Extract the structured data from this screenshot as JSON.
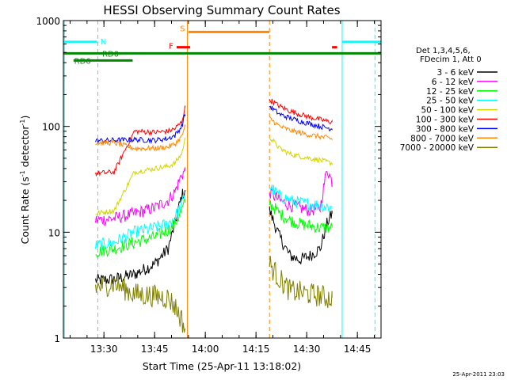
{
  "chart_data": {
    "type": "line",
    "title": "HESSI Observing Summary Count Rates",
    "xlabel": "Start Time (25-Apr-11 13:18:02)",
    "ylabel_main": "Count Rate (s",
    "ylabel_sup1": "-1",
    "ylabel_mid": " detector",
    "ylabel_sup2": "-1",
    "ylabel_end": ")",
    "x_unit": "minutes after 13:18:02",
    "xlim": [
      0,
      94
    ],
    "ylim": [
      1,
      1000
    ],
    "y_scale": "log",
    "x_ticks": [
      {
        "v": 12,
        "label": "13:30"
      },
      {
        "v": 27,
        "label": "13:45"
      },
      {
        "v": 42,
        "label": "14:00"
      },
      {
        "v": 57,
        "label": "14:15"
      },
      {
        "v": 72,
        "label": "14:30"
      },
      {
        "v": 87,
        "label": "14:45"
      }
    ],
    "y_ticks": [
      {
        "v": 1,
        "label": "1"
      },
      {
        "v": 10,
        "label": "10"
      },
      {
        "v": 100,
        "label": "100"
      },
      {
        "v": 1000,
        "label": "1000"
      }
    ],
    "legend_header": [
      "Det 1,3,4,5,6,",
      "FDecim 1, Att 0"
    ],
    "footer_date": "25-Apr-2011 23:03",
    "series": [
      {
        "name": "3 - 6 keV",
        "color": "#000000",
        "segments": [
          [
            9.5,
            3.5
          ],
          [
            15,
            3.6
          ],
          [
            21,
            4.0
          ],
          [
            27,
            5.0
          ],
          [
            31,
            7
          ],
          [
            33,
            12
          ],
          [
            35,
            22
          ],
          [
            36,
            25
          ],
          null,
          [
            61,
            16
          ],
          [
            64,
            9
          ],
          [
            67,
            6
          ],
          [
            70,
            5.5
          ],
          [
            73,
            6.0
          ],
          [
            76,
            7
          ],
          [
            78,
            12
          ],
          [
            79.5,
            15
          ],
          null
        ]
      },
      {
        "name": "6 - 12 keV",
        "color": "#ff00ff",
        "segments": [
          [
            9.5,
            13
          ],
          [
            15,
            13.5
          ],
          [
            21,
            15
          ],
          [
            27,
            17
          ],
          [
            31,
            20
          ],
          [
            33,
            24
          ],
          [
            35,
            35
          ],
          [
            36,
            38
          ],
          null,
          [
            61,
            24
          ],
          [
            64,
            20
          ],
          [
            67,
            18
          ],
          [
            70,
            17
          ],
          [
            73,
            16
          ],
          [
            76,
            17
          ],
          [
            78,
            40
          ],
          [
            79.5,
            30
          ],
          null
        ]
      },
      {
        "name": "12 - 25 keV",
        "color": "#00ff00",
        "segments": [
          [
            9.5,
            6.5
          ],
          [
            15,
            7.0
          ],
          [
            21,
            8.0
          ],
          [
            27,
            9.0
          ],
          [
            31,
            10.5
          ],
          [
            33,
            12
          ],
          [
            35,
            16
          ],
          [
            36,
            19
          ],
          null,
          [
            61,
            19
          ],
          [
            64,
            15
          ],
          [
            67,
            13
          ],
          [
            70,
            12
          ],
          [
            73,
            11.5
          ],
          [
            76,
            11
          ],
          [
            78,
            11
          ],
          [
            79.5,
            11
          ],
          null
        ]
      },
      {
        "name": "25 - 50 keV",
        "color": "#00ffff",
        "segments": [
          [
            9.5,
            7.5
          ],
          [
            15,
            8.0
          ],
          [
            21,
            10
          ],
          [
            27,
            11
          ],
          [
            31,
            12
          ],
          [
            33,
            14
          ],
          [
            35,
            18
          ],
          [
            36,
            24
          ],
          null,
          [
            61,
            27
          ],
          [
            64,
            22
          ],
          [
            67,
            20
          ],
          [
            70,
            19
          ],
          [
            73,
            18.5
          ],
          [
            76,
            18
          ],
          [
            78,
            17.5
          ],
          [
            79.5,
            17
          ],
          null
        ]
      },
      {
        "name": "50 - 100 keV",
        "color": "#d4d400",
        "segments": [
          [
            9.5,
            15
          ],
          [
            15,
            16
          ],
          [
            21,
            37
          ],
          [
            27,
            40
          ],
          [
            31,
            42
          ],
          [
            33,
            45
          ],
          [
            35,
            55
          ],
          [
            36,
            75
          ],
          null,
          [
            61,
            80
          ],
          [
            64,
            62
          ],
          [
            67,
            55
          ],
          [
            70,
            52
          ],
          [
            73,
            50
          ],
          [
            76,
            48
          ],
          [
            78,
            46
          ],
          [
            79.5,
            45
          ],
          null
        ]
      },
      {
        "name": "100 - 300 keV",
        "color": "#ff0000",
        "segments": [
          [
            9.5,
            36
          ],
          [
            15,
            37
          ],
          [
            21,
            90
          ],
          [
            27,
            88
          ],
          [
            31,
            90
          ],
          [
            33,
            95
          ],
          [
            35,
            110
          ],
          [
            36,
            150
          ],
          null,
          [
            61,
            180
          ],
          [
            64,
            155
          ],
          [
            67,
            140
          ],
          [
            70,
            130
          ],
          [
            73,
            122
          ],
          [
            76,
            116
          ],
          [
            78,
            112
          ],
          [
            79.5,
            110
          ],
          null
        ]
      },
      {
        "name": "300 - 800 keV",
        "color": "#0000ff",
        "segments": [
          [
            9.5,
            73
          ],
          [
            15,
            74
          ],
          [
            21,
            75
          ],
          [
            27,
            74
          ],
          [
            31,
            77
          ],
          [
            33,
            82
          ],
          [
            35,
            100
          ],
          [
            36,
            130
          ],
          null,
          [
            61,
            155
          ],
          [
            64,
            130
          ],
          [
            67,
            120
          ],
          [
            70,
            112
          ],
          [
            73,
            106
          ],
          [
            76,
            100
          ],
          [
            78,
            97
          ],
          [
            79.5,
            95
          ],
          null
        ]
      },
      {
        "name": "800 - 7000 keV",
        "color": "#ff8800",
        "segments": [
          [
            9.5,
            70
          ],
          [
            15,
            70
          ],
          [
            21,
            62
          ],
          [
            27,
            62
          ],
          [
            31,
            64
          ],
          [
            33,
            68
          ],
          [
            35,
            80
          ],
          [
            36,
            100
          ],
          null,
          [
            61,
            120
          ],
          [
            64,
            100
          ],
          [
            67,
            92
          ],
          [
            70,
            87
          ],
          [
            73,
            83
          ],
          [
            76,
            80
          ],
          [
            78,
            78
          ],
          [
            79.5,
            76
          ],
          null
        ]
      },
      {
        "name": "7000 - 20000 keV",
        "color": "#808000",
        "segments": [
          [
            9.5,
            3.0
          ],
          [
            15,
            3.3
          ],
          [
            21,
            2.6
          ],
          [
            27,
            2.5
          ],
          [
            31,
            2.4
          ],
          [
            33,
            2.0
          ],
          [
            35,
            1.5
          ],
          [
            36,
            1.2
          ],
          null,
          [
            61,
            5.0
          ],
          [
            64,
            3.6
          ],
          [
            67,
            2.8
          ],
          [
            70,
            2.7
          ],
          [
            73,
            2.6
          ],
          [
            76,
            2.5
          ],
          [
            78,
            2.4
          ],
          [
            79.5,
            2.4
          ],
          null
        ]
      }
    ],
    "state_bars": [
      {
        "label": "N",
        "color": "#00ffff",
        "y": 630,
        "segments": [
          [
            0,
            10
          ]
        ],
        "label_x": 11,
        "label_y": 640
      },
      {
        "label": "",
        "color": "#00ffff",
        "y": 630,
        "segments": [
          [
            82.5,
            94
          ]
        ]
      },
      {
        "label": "S",
        "color": "#ff8800",
        "y": 780,
        "segments": [
          [
            37,
            61
          ]
        ],
        "label_x": 34.5,
        "label_y": 850
      },
      {
        "label": "F",
        "color": "#ff0000",
        "y": 560,
        "segments": [
          [
            33.5,
            37.5
          ]
        ],
        "label_x": 31.2,
        "label_y": 580
      },
      {
        "label": "",
        "color": "#ff0000",
        "y": 560,
        "segments": [
          [
            79.5,
            81
          ]
        ]
      },
      {
        "label": "RD0",
        "color": "#008800",
        "y": 490,
        "segments": [
          [
            0,
            94
          ]
        ],
        "label_x": 11.5,
        "label_y": 490
      },
      {
        "label": "RD6",
        "color": "#008800",
        "y": 420,
        "segments": [
          [
            3,
            20.5
          ]
        ],
        "label_x": 3.2,
        "label_y": 420
      }
    ],
    "vlines": [
      {
        "x": 10.2,
        "color": "#00ffff",
        "dashed": true
      },
      {
        "x": 82.5,
        "color": "#00ffff",
        "dashed": false
      },
      {
        "x": 92.2,
        "color": "#00ffff",
        "dashed": true
      },
      {
        "x": 36.7,
        "color": "#ff8800",
        "dashed": false
      },
      {
        "x": 61,
        "color": "#ff8800",
        "dashed": true
      },
      {
        "x": 0.3,
        "color": "#00ffff",
        "dashed": false
      }
    ]
  }
}
